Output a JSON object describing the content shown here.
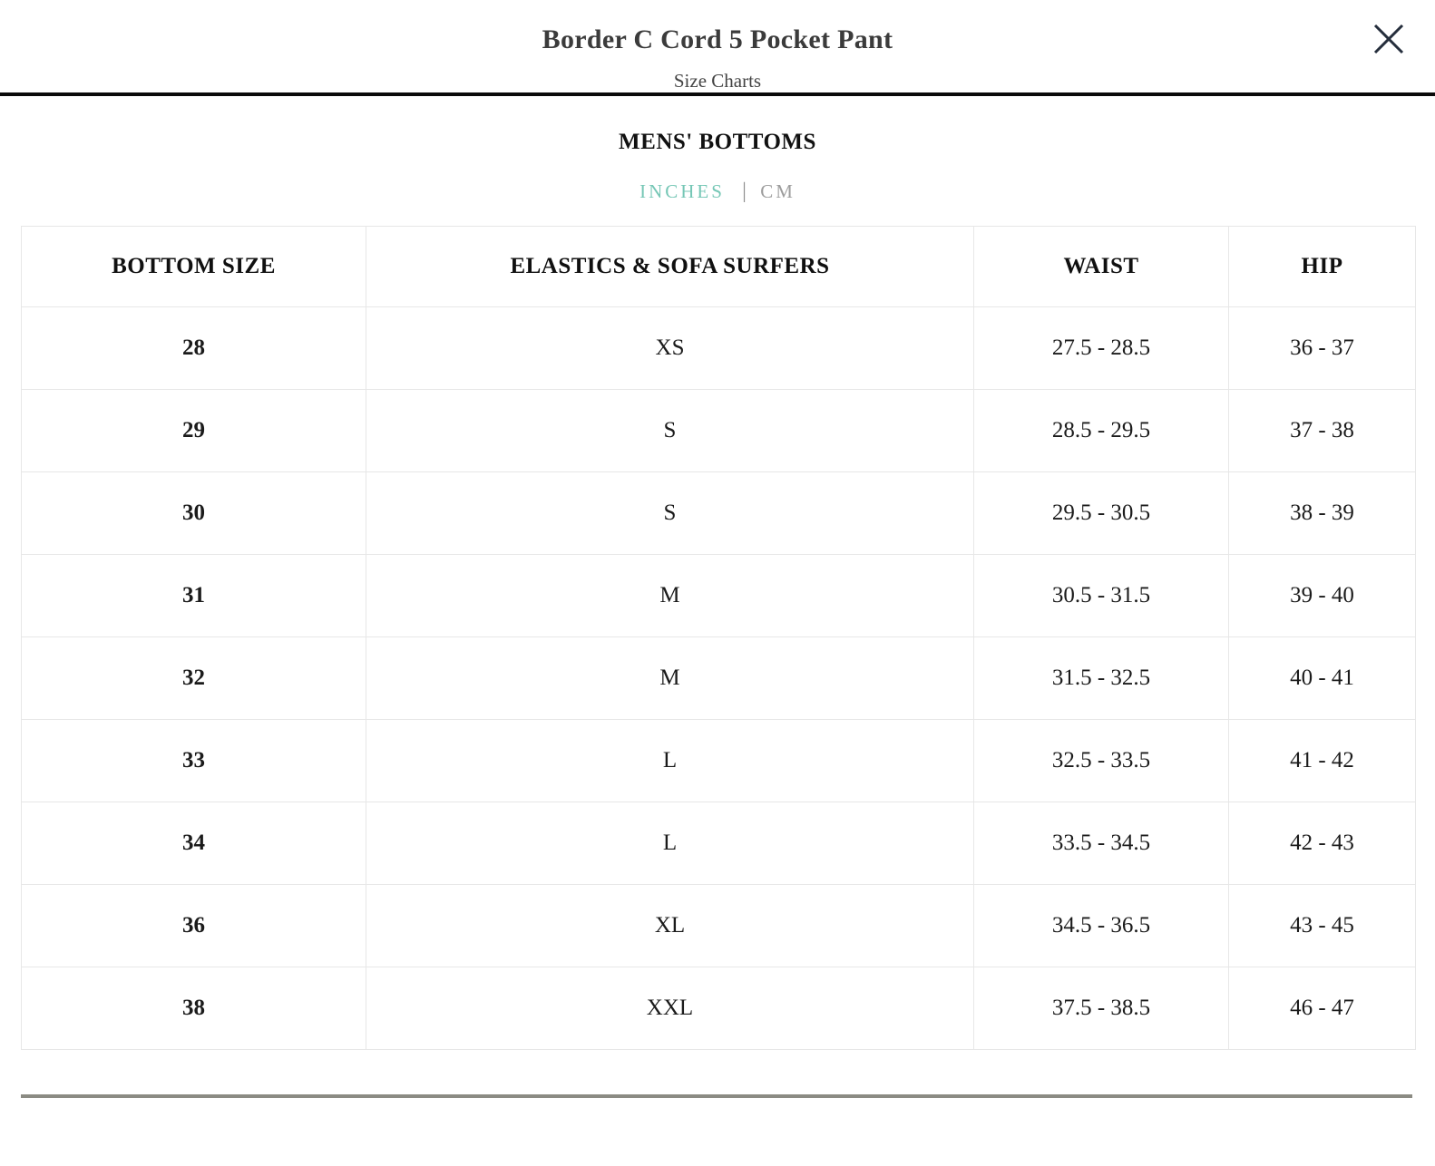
{
  "modal": {
    "title": "Border C Cord 5 Pocket Pant",
    "subtitle": "Size Charts"
  },
  "section": {
    "heading": "MENS' BOTTOMS",
    "units": {
      "inches_label": "INCHES",
      "separator": "|",
      "cm_label": "CM",
      "active_unit": "INCHES",
      "active_color": "#76c7b6",
      "inactive_color": "#9d9d9d"
    }
  },
  "size_table": {
    "headers": [
      "BOTTOM SIZE",
      "ELASTICS & SOFA SURFERS",
      "WAIST",
      "HIP"
    ],
    "column_keys": [
      "bottom-size",
      "elastics-sofa-surfers",
      "waist",
      "hip"
    ],
    "rows": [
      [
        "28",
        "XS",
        "27.5 - 28.5",
        "36 - 37"
      ],
      [
        "29",
        "S",
        "28.5 - 29.5",
        "37 - 38"
      ],
      [
        "30",
        "S",
        "29.5 - 30.5",
        "38 - 39"
      ],
      [
        "31",
        "M",
        "30.5 - 31.5",
        "39 - 40"
      ],
      [
        "32",
        "M",
        "31.5 - 32.5",
        "40 - 41"
      ],
      [
        "33",
        "L",
        "32.5 - 33.5",
        "41 - 42"
      ],
      [
        "34",
        "L",
        "33.5 - 34.5",
        "42 - 43"
      ],
      [
        "36",
        "XL",
        "34.5 - 36.5",
        "43 - 45"
      ],
      [
        "38",
        "XXL",
        "37.5 - 38.5",
        "46 - 47"
      ]
    ]
  },
  "colors": {
    "header_divider": "#0a0a0a",
    "footer_divider": "#8b8b83",
    "table_border": "#e7e7e7",
    "close_icon": "#252e3c"
  }
}
